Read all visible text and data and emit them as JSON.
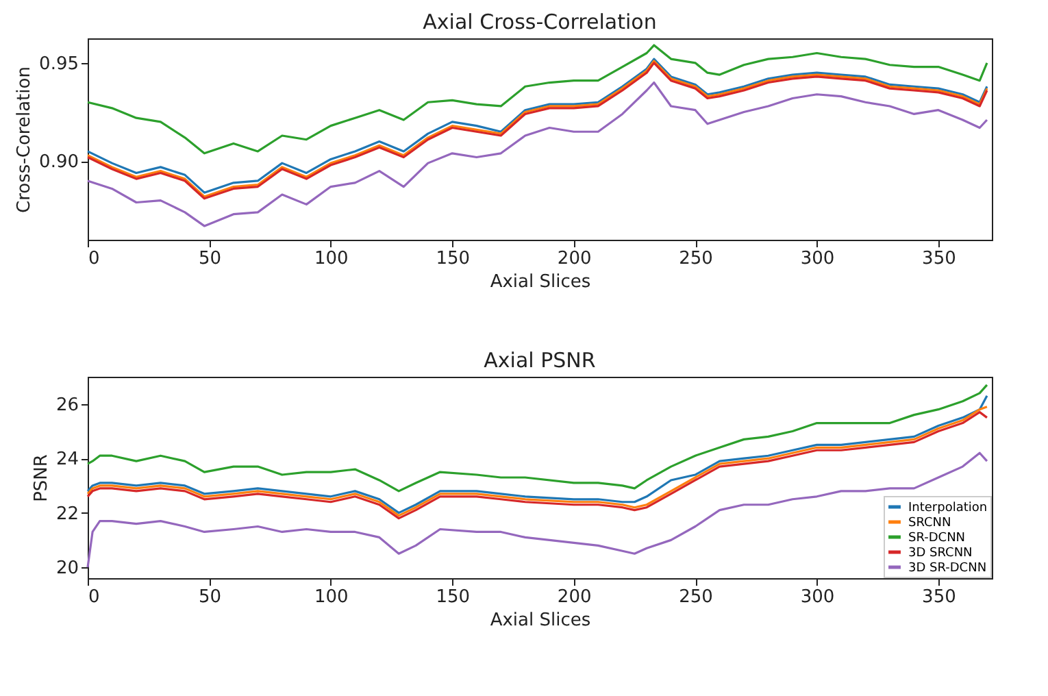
{
  "chart_data": [
    {
      "type": "line",
      "title": "Axial Cross-Correlation",
      "xlabel": "Axial Slices",
      "ylabel": "Cross-Corelation",
      "xlim": [
        0,
        372
      ],
      "xticks": [
        0,
        50,
        100,
        150,
        200,
        250,
        300,
        350
      ],
      "ylim": [
        0.86,
        0.9625
      ],
      "yticks": [
        {
          "value": 0.9,
          "label": "0.90"
        },
        {
          "value": 0.95,
          "label": "0.95"
        }
      ],
      "grid": false,
      "line_style": "solid",
      "marker": "none",
      "x": [
        0,
        10,
        20,
        30,
        40,
        48,
        60,
        70,
        80,
        90,
        100,
        110,
        120,
        130,
        140,
        150,
        160,
        170,
        180,
        190,
        200,
        210,
        220,
        230,
        233,
        240,
        250,
        255,
        260,
        270,
        280,
        290,
        300,
        310,
        320,
        330,
        340,
        350,
        360,
        367,
        370
      ],
      "series": [
        {
          "color": "#1f77b4",
          "values": [
            0.905,
            0.899,
            0.894,
            0.897,
            0.893,
            0.884,
            0.889,
            0.89,
            0.899,
            0.894,
            0.901,
            0.905,
            0.91,
            0.905,
            0.914,
            0.92,
            0.918,
            0.915,
            0.926,
            0.929,
            0.929,
            0.93,
            0.938,
            0.947,
            0.952,
            0.943,
            0.939,
            0.934,
            0.935,
            0.938,
            0.942,
            0.944,
            0.945,
            0.944,
            0.943,
            0.939,
            0.938,
            0.937,
            0.934,
            0.93,
            0.938
          ]
        },
        {
          "color": "#ff7f0e",
          "values": [
            0.903,
            0.897,
            0.892,
            0.895,
            0.891,
            0.882,
            0.887,
            0.888,
            0.897,
            0.892,
            0.899,
            0.903,
            0.908,
            0.903,
            0.912,
            0.918,
            0.916,
            0.914,
            0.925,
            0.928,
            0.928,
            0.929,
            0.937,
            0.946,
            0.951,
            0.942,
            0.938,
            0.933,
            0.934,
            0.937,
            0.941,
            0.943,
            0.944,
            0.943,
            0.942,
            0.938,
            0.937,
            0.936,
            0.933,
            0.929,
            0.937
          ]
        },
        {
          "color": "#2ca02c",
          "values": [
            0.93,
            0.927,
            0.922,
            0.92,
            0.912,
            0.904,
            0.909,
            0.905,
            0.913,
            0.911,
            0.918,
            0.922,
            0.926,
            0.921,
            0.93,
            0.931,
            0.929,
            0.928,
            0.938,
            0.94,
            0.941,
            0.941,
            0.948,
            0.955,
            0.959,
            0.952,
            0.95,
            0.945,
            0.944,
            0.949,
            0.952,
            0.953,
            0.955,
            0.953,
            0.952,
            0.949,
            0.948,
            0.948,
            0.944,
            0.941,
            0.95
          ]
        },
        {
          "color": "#d62728",
          "values": [
            0.902,
            0.896,
            0.891,
            0.894,
            0.89,
            0.881,
            0.886,
            0.887,
            0.896,
            0.891,
            0.898,
            0.902,
            0.907,
            0.902,
            0.911,
            0.917,
            0.915,
            0.913,
            0.924,
            0.927,
            0.927,
            0.928,
            0.936,
            0.945,
            0.95,
            0.941,
            0.937,
            0.932,
            0.933,
            0.936,
            0.94,
            0.942,
            0.943,
            0.942,
            0.941,
            0.937,
            0.936,
            0.935,
            0.932,
            0.928,
            0.936
          ]
        },
        {
          "color": "#9467bd",
          "values": [
            0.89,
            0.886,
            0.879,
            0.88,
            0.874,
            0.867,
            0.873,
            0.874,
            0.883,
            0.878,
            0.887,
            0.889,
            0.895,
            0.887,
            0.899,
            0.904,
            0.902,
            0.904,
            0.913,
            0.917,
            0.915,
            0.915,
            0.924,
            0.936,
            0.94,
            0.928,
            0.926,
            0.919,
            0.921,
            0.925,
            0.928,
            0.932,
            0.934,
            0.933,
            0.93,
            0.928,
            0.924,
            0.926,
            0.921,
            0.917,
            0.921
          ]
        }
      ]
    },
    {
      "type": "line",
      "title": "Axial PSNR",
      "xlabel": "Axial Slices",
      "ylabel": "PSNR",
      "xlim": [
        0,
        372
      ],
      "xticks": [
        0,
        50,
        100,
        150,
        200,
        250,
        300,
        350
      ],
      "ylim": [
        19.6,
        27.0
      ],
      "yticks": [
        20,
        22,
        24,
        26
      ],
      "grid": false,
      "legend": "bottom right",
      "line_style": "solid",
      "marker": "none",
      "x": [
        0,
        2,
        5,
        10,
        20,
        30,
        40,
        48,
        60,
        70,
        80,
        90,
        100,
        110,
        120,
        128,
        135,
        145,
        160,
        170,
        180,
        200,
        210,
        220,
        225,
        230,
        240,
        250,
        260,
        270,
        280,
        290,
        300,
        310,
        320,
        330,
        340,
        350,
        360,
        367,
        370
      ],
      "series": [
        {
          "name": "Interpolation",
          "color": "#1f77b4",
          "values": [
            22.8,
            23.0,
            23.1,
            23.1,
            23.0,
            23.1,
            23.0,
            22.7,
            22.8,
            22.9,
            22.8,
            22.7,
            22.6,
            22.8,
            22.5,
            22.0,
            22.3,
            22.8,
            22.8,
            22.7,
            22.6,
            22.5,
            22.5,
            22.4,
            22.4,
            22.6,
            23.2,
            23.4,
            23.9,
            24.0,
            24.1,
            24.3,
            24.5,
            24.5,
            24.6,
            24.7,
            24.8,
            25.2,
            25.5,
            25.8,
            26.3
          ]
        },
        {
          "name": "SRCNN",
          "color": "#ff7f0e",
          "values": [
            22.7,
            22.9,
            23.0,
            23.0,
            22.9,
            23.0,
            22.9,
            22.6,
            22.7,
            22.8,
            22.7,
            22.6,
            22.5,
            22.7,
            22.4,
            21.9,
            22.2,
            22.7,
            22.7,
            22.6,
            22.5,
            22.4,
            22.4,
            22.3,
            22.2,
            22.3,
            22.8,
            23.3,
            23.8,
            23.9,
            24.0,
            24.2,
            24.4,
            24.4,
            24.5,
            24.6,
            24.7,
            25.1,
            25.4,
            25.8,
            25.9
          ]
        },
        {
          "name": "SR-DCNN",
          "color": "#2ca02c",
          "values": [
            23.8,
            23.9,
            24.1,
            24.1,
            23.9,
            24.1,
            23.9,
            23.5,
            23.7,
            23.7,
            23.4,
            23.5,
            23.5,
            23.6,
            23.2,
            22.8,
            23.1,
            23.5,
            23.4,
            23.3,
            23.3,
            23.1,
            23.1,
            23.0,
            22.9,
            23.2,
            23.7,
            24.1,
            24.4,
            24.7,
            24.8,
            25.0,
            25.3,
            25.3,
            25.3,
            25.3,
            25.6,
            25.8,
            26.1,
            26.4,
            26.7
          ]
        },
        {
          "name": "3D SRCNN",
          "color": "#d62728",
          "values": [
            22.6,
            22.8,
            22.9,
            22.9,
            22.8,
            22.9,
            22.8,
            22.5,
            22.6,
            22.7,
            22.6,
            22.5,
            22.4,
            22.6,
            22.3,
            21.8,
            22.1,
            22.6,
            22.6,
            22.5,
            22.4,
            22.3,
            22.3,
            22.2,
            22.1,
            22.2,
            22.7,
            23.2,
            23.7,
            23.8,
            23.9,
            24.1,
            24.3,
            24.3,
            24.4,
            24.5,
            24.6,
            25.0,
            25.3,
            25.7,
            25.5
          ]
        },
        {
          "name": "3D SR-DCNN",
          "color": "#9467bd",
          "values": [
            20.0,
            21.3,
            21.7,
            21.7,
            21.6,
            21.7,
            21.5,
            21.3,
            21.4,
            21.5,
            21.3,
            21.4,
            21.3,
            21.3,
            21.1,
            20.5,
            20.8,
            21.4,
            21.3,
            21.3,
            21.1,
            20.9,
            20.8,
            20.6,
            20.5,
            20.7,
            21.0,
            21.5,
            22.1,
            22.3,
            22.3,
            22.5,
            22.6,
            22.8,
            22.8,
            22.9,
            22.9,
            23.3,
            23.7,
            24.2,
            23.9
          ]
        }
      ]
    }
  ]
}
